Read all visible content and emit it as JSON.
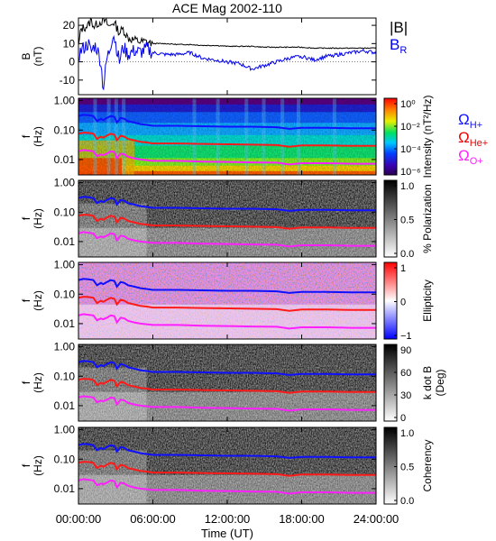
{
  "title": "ACE Mag 2002-110",
  "colors": {
    "b_total": "#000000",
    "b_radial": "#0000ee",
    "h_plus": "#1010ff",
    "he_plus": "#ff1a1a",
    "o_plus": "#ff20ff",
    "label_red": "#ee0000"
  },
  "time_axis": {
    "label": "Time (UT)",
    "ticks": [
      "00:00:00",
      "06:00:00",
      "12:00:00",
      "18:00:00",
      "24:00:00"
    ],
    "hours": [
      0,
      6,
      12,
      18,
      24
    ]
  },
  "legend_b": {
    "total": "|B|",
    "radial": "B",
    "radial_sub": "R"
  },
  "legend_species": [
    {
      "symbol": "Ω",
      "sub": "H+",
      "color_key": "h_plus"
    },
    {
      "symbol": "Ω",
      "sub": "He+",
      "color_key": "label_red"
    },
    {
      "symbol": "Ω",
      "sub": "O+",
      "color_key": "o_plus"
    }
  ],
  "chart_data": [
    {
      "type": "line",
      "name": "B field",
      "ylabel_top": "B",
      "ylabel_bottom": "(nT)",
      "ylim": [
        -18,
        24
      ],
      "yticks": [
        "20",
        "10",
        "0",
        "-10"
      ],
      "ytick_values": [
        20,
        10,
        0,
        -10
      ],
      "x": [
        0,
        0.2,
        0.5,
        0.8,
        1.0,
        1.3,
        1.5,
        1.8,
        2.0,
        2.3,
        2.5,
        2.8,
        3.0,
        3.3,
        3.6,
        4.0,
        4.5,
        5.0,
        5.5,
        6.0,
        7,
        8,
        9,
        10,
        11,
        12,
        13,
        14,
        15,
        16,
        17,
        18,
        19,
        20,
        21,
        22,
        23,
        24
      ],
      "series": [
        {
          "name": "|B|",
          "values": [
            8,
            18,
            19,
            20,
            23,
            19,
            21,
            22,
            23,
            21,
            19,
            22,
            20,
            16,
            18,
            13,
            12,
            11,
            11,
            10,
            10,
            9.5,
            9.5,
            9,
            9,
            8.5,
            8.5,
            8.5,
            8,
            8,
            8,
            8,
            7.5,
            7.5,
            7.5,
            7.5,
            7.5,
            7.5
          ]
        },
        {
          "name": "B_R",
          "values": [
            3,
            6,
            8,
            10,
            5,
            9,
            7,
            0,
            -15,
            2,
            6,
            16,
            10,
            0,
            8,
            4,
            6,
            5,
            7,
            5,
            4,
            4,
            5,
            2,
            1,
            0,
            -1,
            -4,
            -2,
            0,
            2,
            3,
            1,
            3,
            4,
            5,
            6,
            5
          ]
        }
      ]
    },
    {
      "type": "heatmap",
      "name": "Power spectral density",
      "ylabel_top": "f",
      "ylabel_bottom": "(Hz)",
      "yscale": "log",
      "ylim": [
        0.003,
        1.2
      ],
      "yticks": [
        "1.00",
        "0.10",
        "0.01"
      ],
      "ytick_values": [
        1.0,
        0.1,
        0.01
      ],
      "colorbar": {
        "label": "Intensity (nT²/Hz)",
        "ticks": [
          "10⁰",
          "10⁻²",
          "10⁻⁴",
          "10⁻⁶"
        ],
        "scale": "rainbow"
      }
    },
    {
      "type": "heatmap",
      "name": "Polarization",
      "ylabel_top": "f",
      "ylabel_bottom": "(Hz)",
      "yscale": "log",
      "ylim": [
        0.003,
        1.2
      ],
      "yticks": [
        "1.00",
        "0.10",
        "0.01"
      ],
      "ytick_values": [
        1.0,
        0.1,
        0.01
      ],
      "colorbar": {
        "label": "% Polarization",
        "ticks": [
          "1.0",
          "0.5",
          "0.0"
        ],
        "scale": "gray"
      }
    },
    {
      "type": "heatmap",
      "name": "Ellipticity",
      "ylabel_top": "f",
      "ylabel_bottom": "(Hz)",
      "yscale": "log",
      "ylim": [
        0.003,
        1.2
      ],
      "yticks": [
        "1.00",
        "0.10",
        "0.01"
      ],
      "ytick_values": [
        1.0,
        0.1,
        0.01
      ],
      "colorbar": {
        "label": "Ellipticity",
        "ticks": [
          "1",
          "0",
          "−1"
        ],
        "scale": "redblue"
      }
    },
    {
      "type": "heatmap",
      "name": "k dot B",
      "ylabel_top": "f",
      "ylabel_bottom": "(Hz)",
      "yscale": "log",
      "ylim": [
        0.003,
        1.2
      ],
      "yticks": [
        "1.00",
        "0.10",
        "0.01"
      ],
      "ytick_values": [
        1.0,
        0.1,
        0.01
      ],
      "colorbar": {
        "label": "k dot B",
        "label2": "(Deg)",
        "ticks": [
          "90",
          "60",
          "30",
          "0"
        ],
        "scale": "gray"
      }
    },
    {
      "type": "heatmap",
      "name": "Coherency",
      "ylabel_top": "f",
      "ylabel_bottom": "(Hz)",
      "yscale": "log",
      "ylim": [
        0.003,
        1.2
      ],
      "yticks": [
        "1.00",
        "0.10",
        "0.01"
      ],
      "ytick_values": [
        1.0,
        0.1,
        0.01
      ],
      "colorbar": {
        "label": "Coherency",
        "ticks": [
          "1.0",
          "0.5",
          "0.0"
        ],
        "scale": "gray"
      }
    }
  ],
  "gyrofrequency_lines": {
    "x_hours": [
      0,
      0.4,
      0.8,
      1.2,
      1.5,
      1.8,
      2.0,
      2.3,
      2.6,
      2.9,
      3.1,
      3.4,
      3.7,
      4.0,
      4.5,
      5.0,
      5.5,
      6,
      8,
      10,
      12,
      14,
      16,
      17,
      18,
      20,
      22,
      24
    ],
    "h_plus_hz": [
      0.3,
      0.33,
      0.32,
      0.3,
      0.2,
      0.24,
      0.22,
      0.26,
      0.3,
      0.28,
      0.18,
      0.26,
      0.24,
      0.2,
      0.18,
      0.16,
      0.15,
      0.14,
      0.14,
      0.135,
      0.13,
      0.13,
      0.125,
      0.11,
      0.12,
      0.12,
      0.115,
      0.115
    ],
    "he_plus_hz": [
      0.075,
      0.082,
      0.08,
      0.075,
      0.05,
      0.06,
      0.055,
      0.065,
      0.075,
      0.07,
      0.045,
      0.065,
      0.06,
      0.05,
      0.045,
      0.04,
      0.038,
      0.035,
      0.035,
      0.034,
      0.033,
      0.032,
      0.031,
      0.027,
      0.03,
      0.03,
      0.029,
      0.029
    ],
    "o_plus_hz": [
      0.019,
      0.021,
      0.02,
      0.019,
      0.013,
      0.015,
      0.014,
      0.016,
      0.019,
      0.018,
      0.011,
      0.016,
      0.015,
      0.0125,
      0.011,
      0.01,
      0.0095,
      0.009,
      0.009,
      0.0085,
      0.0083,
      0.008,
      0.0078,
      0.0068,
      0.0075,
      0.0075,
      0.0072,
      0.0072
    ]
  }
}
